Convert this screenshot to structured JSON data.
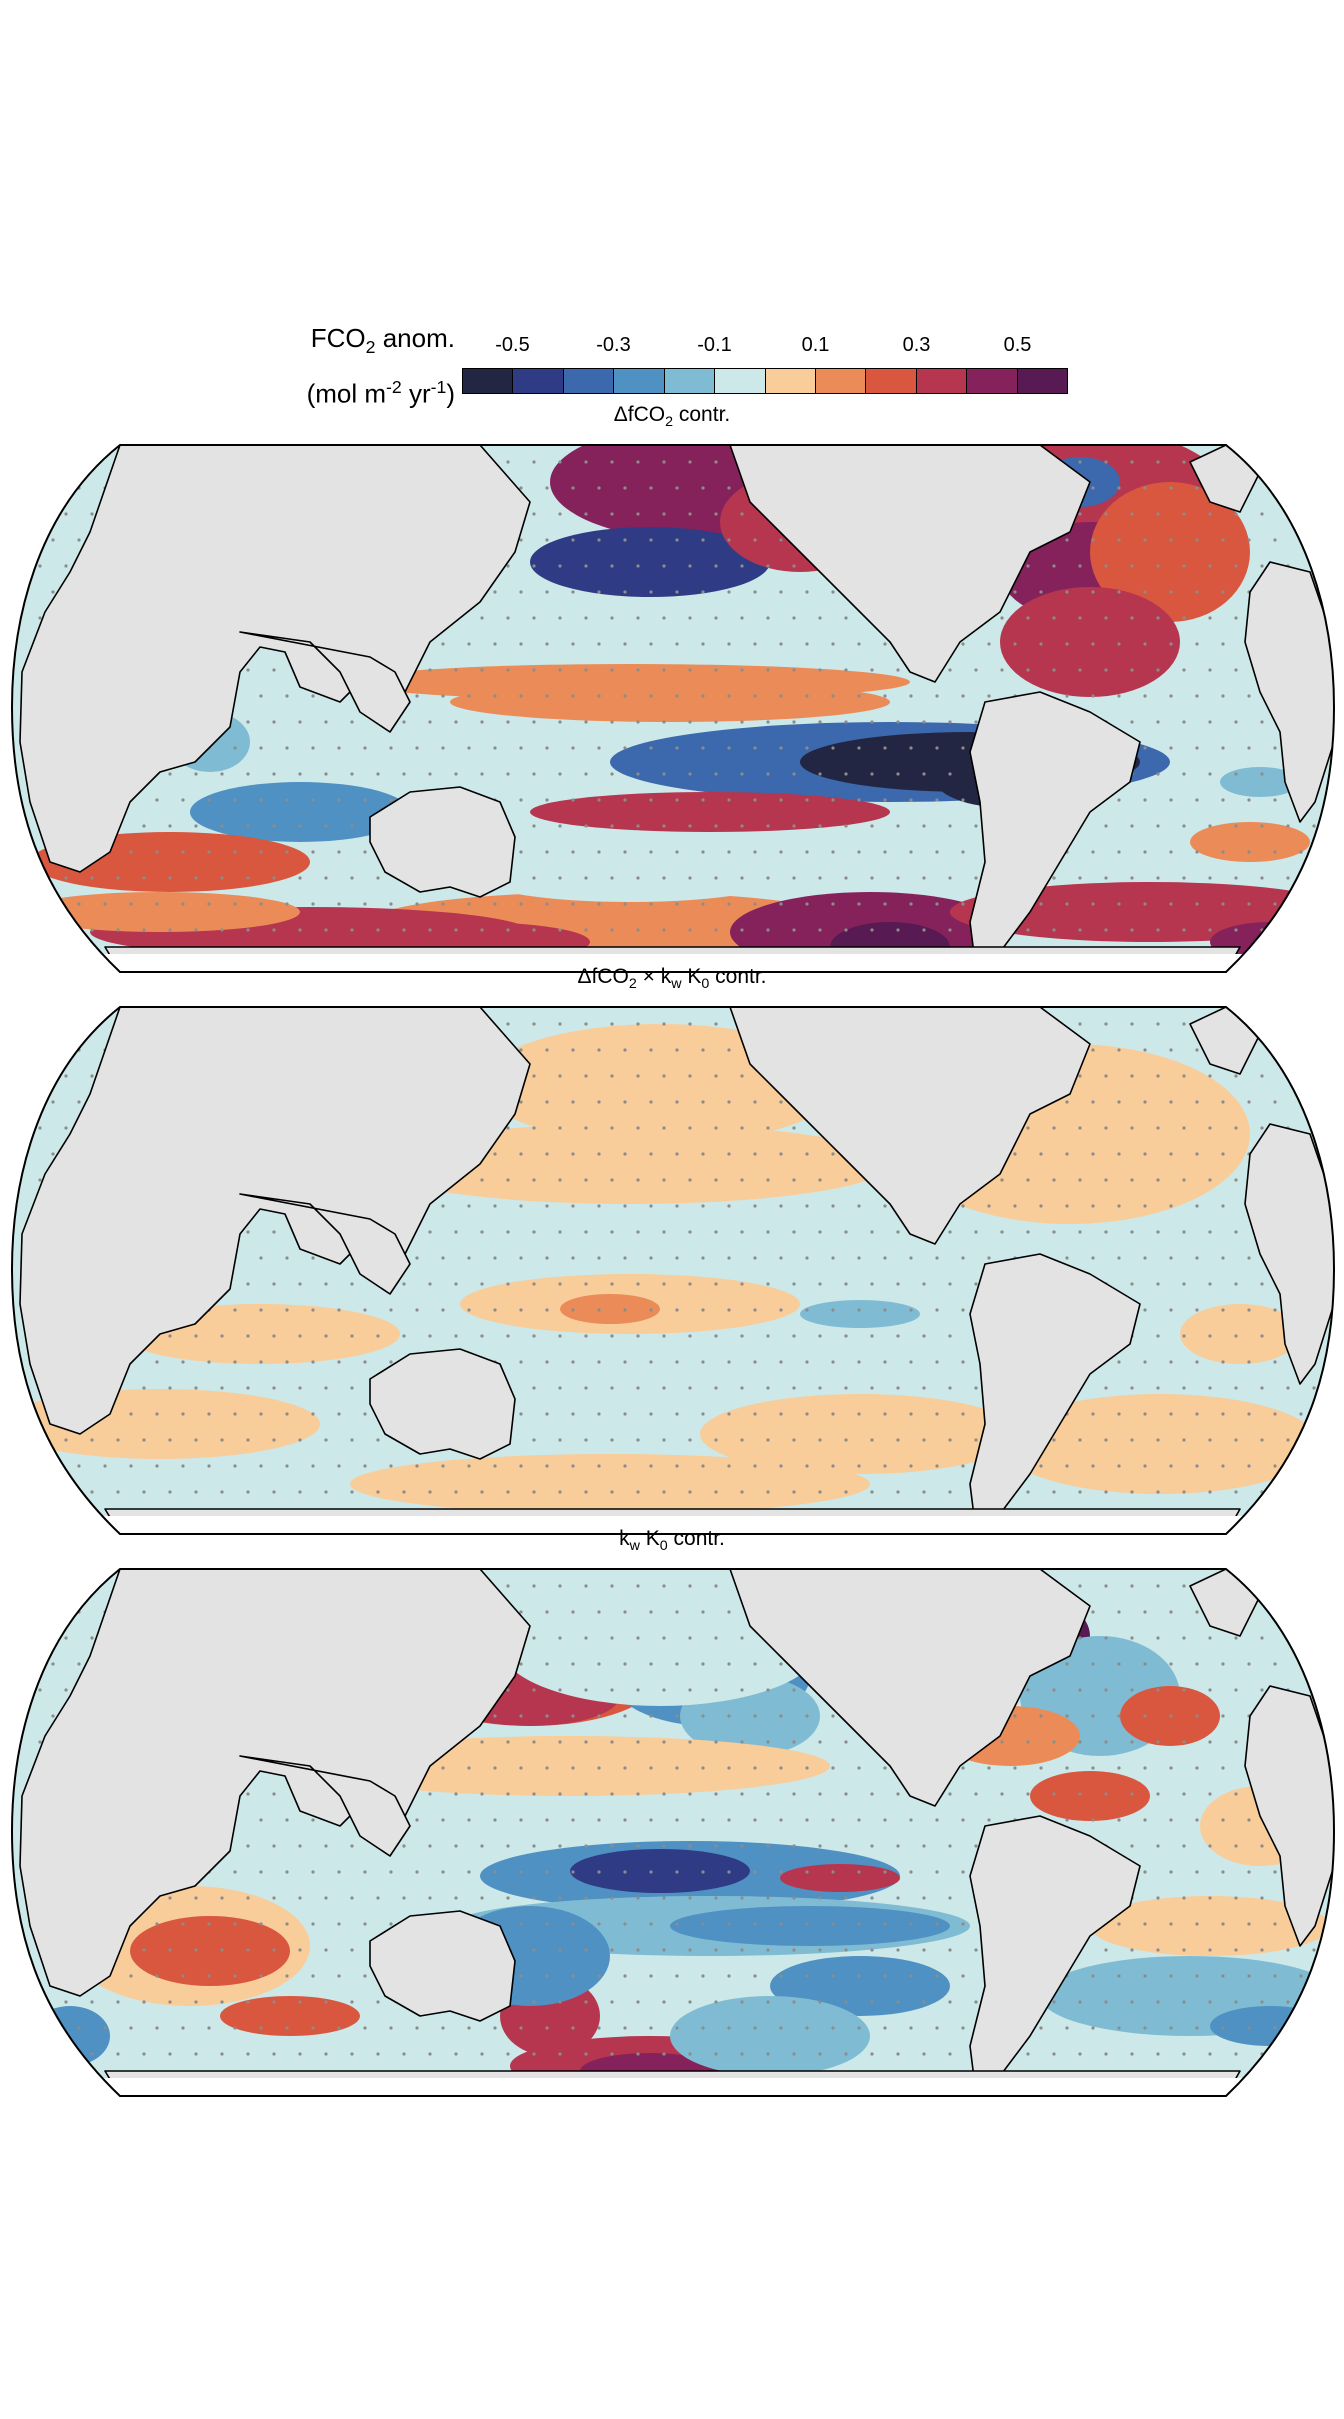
{
  "legend": {
    "title_main": "FCO",
    "title_sub": "2",
    "title_suffix": " anom.",
    "units_prefix": "(mol m",
    "units_sup1": "-2",
    "units_mid": " yr",
    "units_sup2": "-1",
    "units_suffix": ")",
    "tick_labels": [
      "-0.5",
      "-0.3",
      "-0.1",
      "0.1",
      "0.3",
      "0.5"
    ],
    "bins": [
      -0.6,
      -0.5,
      -0.4,
      -0.3,
      -0.2,
      -0.1,
      0.0,
      0.1,
      0.2,
      0.3,
      0.4,
      0.5,
      0.6
    ],
    "colors": [
      "#232643",
      "#2f3c85",
      "#3c68ad",
      "#4f91c2",
      "#7fbcd3",
      "#cce8e9",
      "#f8cd9a",
      "#eb8c58",
      "#d9573f",
      "#b63650",
      "#86225b",
      "#571a53"
    ]
  },
  "land_color": "#e3e3e3",
  "stipple_color": "#8c8c8c",
  "panels": [
    {
      "title_a": "ΔfCO",
      "title_a_sub": "2",
      "title_a_rest": " contr.",
      "title_b": "",
      "title_b_sub": "",
      "title_c": "",
      "title_c_sub": "",
      "title_d": ""
    },
    {
      "title_a": "ΔfCO",
      "title_a_sub": "2",
      "title_a_rest": " × k",
      "title_b": "w",
      "title_b_sub": "",
      "title_c": " K",
      "title_c_sub": "0",
      "title_d": " contr."
    },
    {
      "title_a": "k",
      "title_a_sub": "w",
      "title_a_rest": " K",
      "title_b": "0",
      "title_b_sub": "",
      "title_c": " contr.",
      "title_c_sub": "",
      "title_d": ""
    }
  ]
}
